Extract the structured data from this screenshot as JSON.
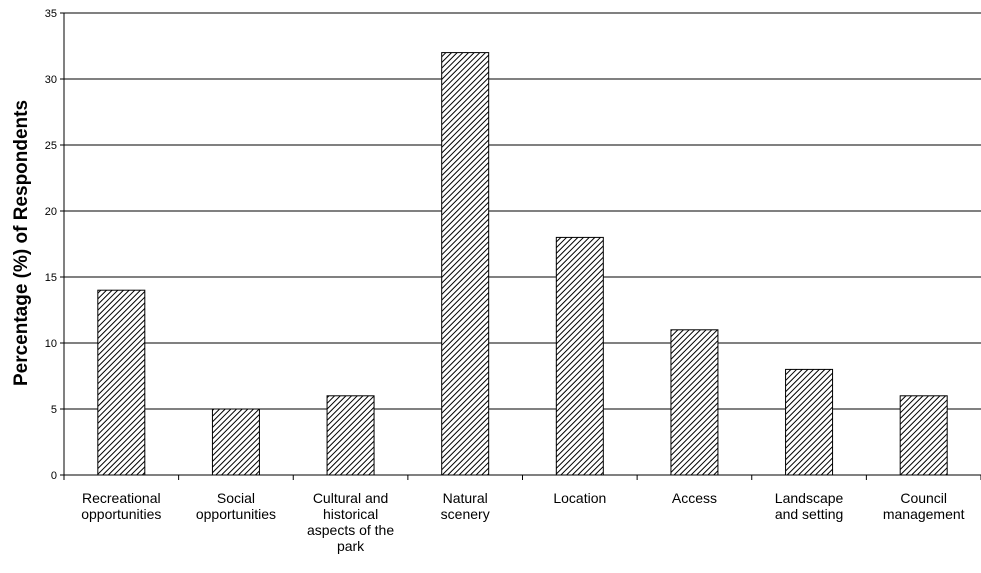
{
  "chart_data": {
    "type": "bar",
    "title": "",
    "xlabel": "",
    "ylabel": "Percentage (%) of Respondents",
    "ylim": [
      0,
      35
    ],
    "yticks": [
      0,
      5,
      10,
      15,
      20,
      25,
      30,
      35
    ],
    "grid": true,
    "legend": "none",
    "bar_fill": "diagonal-hatch",
    "colors": {
      "bar_stroke": "#000000",
      "hatch": "#000000",
      "grid": "#000000",
      "background": "#ffffff"
    },
    "categories": [
      [
        "Recreational",
        "opportunities"
      ],
      [
        "Social",
        "opportunities"
      ],
      [
        "Cultural and",
        "historical",
        "aspects of the",
        "park"
      ],
      [
        "Natural",
        "scenery"
      ],
      [
        "Location"
      ],
      [
        "Access"
      ],
      [
        "Landscape",
        "and setting"
      ],
      [
        "Council",
        "management"
      ]
    ],
    "values": [
      14,
      5,
      6,
      32,
      18,
      11,
      8,
      6
    ]
  }
}
